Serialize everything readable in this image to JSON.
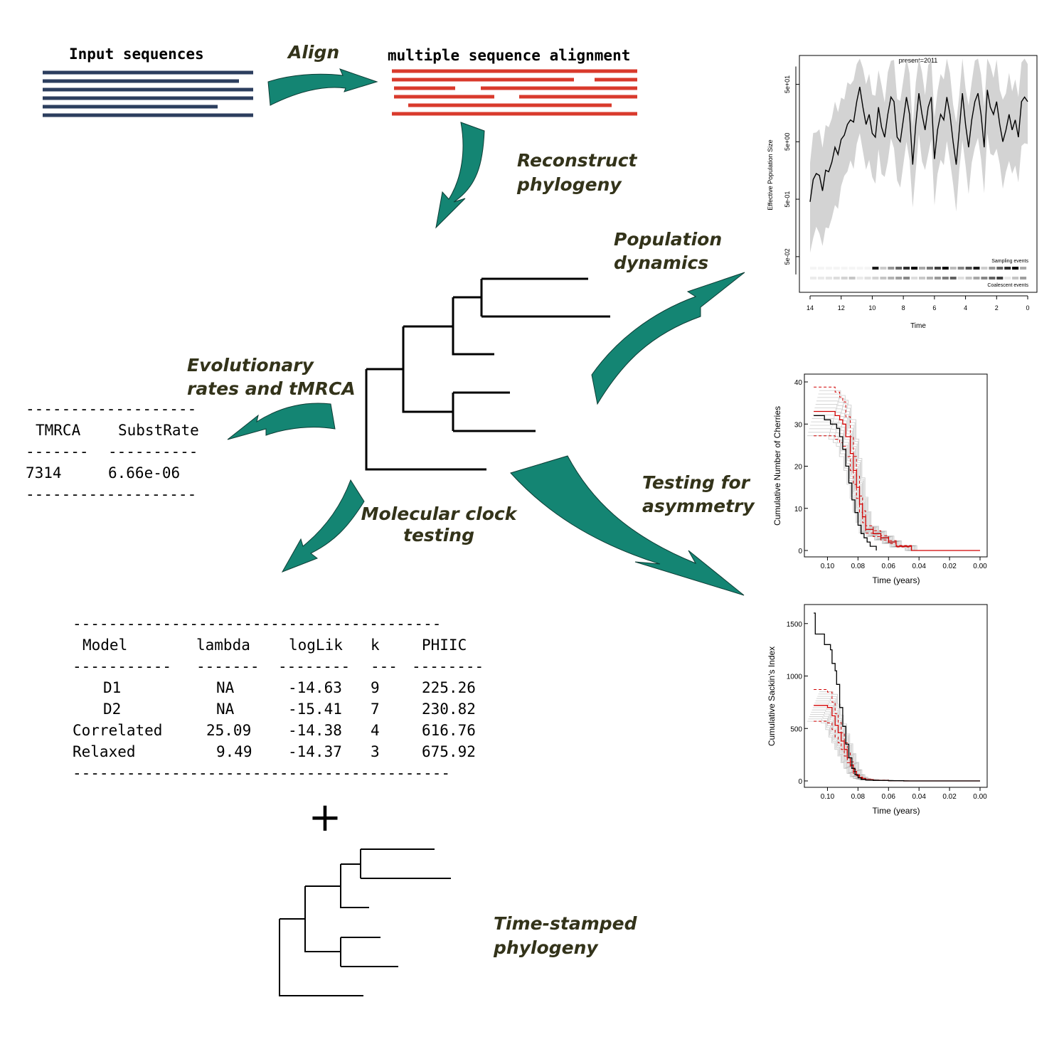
{
  "colors": {
    "arrow": "#148573",
    "input_lines": "#2c3e5e",
    "alignment_lines": "#d93a2c",
    "label_text": "#33331a",
    "ci_band": "#d3d3d3",
    "simulation_red": "#d00000"
  },
  "icons": {
    "arrow": "curved-arrow-icon",
    "plus": "plus-icon"
  },
  "labels": {
    "input_sequences": "Input sequences",
    "align": "Align",
    "msa": "multiple sequence alignment",
    "reconstruct_1": "Reconstruct",
    "reconstruct_2": "phylogeny",
    "popdyn_1": "Population",
    "popdyn_2": "dynamics",
    "evorates_1": "Evolutionary",
    "evorates_2": "rates and tMRCA",
    "clock_1": "Molecular clock",
    "clock_2": "testing",
    "asym_1": "Testing for",
    "asym_2": "asymmetry",
    "timestamped_1": "Time-stamped",
    "timestamped_2": "phylogeny",
    "plus": "+"
  },
  "rates_table": {
    "rule": "-------------------",
    "sep_1": "-------",
    "sep_2": "----------",
    "headers": [
      "TMRCA",
      "SubstRate"
    ],
    "row": [
      "7314",
      "6.66e-06"
    ]
  },
  "clock_table": {
    "rule_top": "-----------------------------------------",
    "rule_bottom": "------------------------------------------",
    "seps": [
      "-----------",
      "-------",
      "--------",
      "---",
      "--------"
    ],
    "headers": [
      "Model",
      "lambda",
      "logLik",
      "k",
      "PHIIC"
    ],
    "rows": [
      [
        "D1",
        "NA",
        "-14.63",
        "9",
        "225.26"
      ],
      [
        "D2",
        "NA",
        "-15.41",
        "7",
        "230.82"
      ],
      [
        "Correlated",
        "25.09",
        "-14.38",
        "4",
        "616.76"
      ],
      [
        "Relaxed",
        "9.49",
        "-14.37",
        "3",
        "675.92"
      ]
    ]
  },
  "chart_data": [
    {
      "type": "line",
      "title": "present=2011",
      "xlabel": "Time",
      "ylabel": "Effective Population Size",
      "x_ticks": [
        "14",
        "12",
        "10",
        "8",
        "6",
        "4",
        "2",
        "0"
      ],
      "y_ticks": [
        "5e-02",
        "5e-01",
        "5e+00",
        "5e+01"
      ],
      "xlim": [
        14,
        0
      ],
      "log_y": true,
      "annotations": [
        "Sampling events",
        "Coalescent events"
      ],
      "series": [
        {
          "x": [
            14.0,
            13.8,
            13.6,
            13.4,
            13.2,
            13.0,
            12.8,
            12.6,
            12.4,
            12.2,
            12.0,
            11.8,
            11.6,
            11.4,
            11.2,
            11.0,
            10.8,
            10.6,
            10.4,
            10.2,
            10.0,
            9.8,
            9.6,
            9.4,
            9.2,
            9.0,
            8.8,
            8.6,
            8.4,
            8.2,
            8.0,
            7.8,
            7.6,
            7.4,
            7.2,
            7.0,
            6.8,
            6.6,
            6.4,
            6.2,
            6.0,
            5.8,
            5.6,
            5.4,
            5.2,
            5.0,
            4.8,
            4.6,
            4.4,
            4.2,
            4.0,
            3.8,
            3.6,
            3.4,
            3.2,
            3.0,
            2.8,
            2.6,
            2.4,
            2.2,
            2.0,
            1.8,
            1.6,
            1.4,
            1.2,
            1.0,
            0.8,
            0.6,
            0.4,
            0.2,
            0.0
          ],
          "y": [
            0.45,
            1.1,
            1.4,
            1.3,
            0.7,
            1.6,
            1.5,
            2.2,
            4.0,
            3.0,
            5.5,
            6.5,
            10.0,
            12.0,
            11.0,
            25.0,
            45.0,
            20.0,
            10.0,
            15.0,
            7.0,
            6.0,
            20.0,
            9.0,
            6.0,
            15.0,
            30.0,
            25.0,
            6.0,
            5.0,
            12.0,
            30.0,
            15.0,
            2.0,
            10.0,
            35.0,
            15.0,
            8.0,
            20.0,
            30.0,
            2.5,
            8.0,
            15.0,
            12.0,
            30.0,
            15.0,
            5.0,
            2.0,
            8.0,
            35.0,
            10.0,
            4.0,
            12.0,
            25.0,
            35.0,
            15.0,
            4.0,
            40.0,
            20.0,
            15.0,
            25.0,
            10.0,
            5.0,
            8.0,
            15.0,
            8.0,
            12.0,
            6.0,
            25.0,
            30.0,
            25.0
          ]
        }
      ]
    },
    {
      "type": "line",
      "xlabel": "Time (years)",
      "ylabel": "Cumulative Number of Cherries",
      "x_ticks": [
        "0.10",
        "0.08",
        "0.06",
        "0.04",
        "0.02",
        "0.00"
      ],
      "y_ticks": [
        "0",
        "10",
        "20",
        "30",
        "40"
      ],
      "xlim": [
        0.11,
        0.0
      ],
      "ylim": [
        0,
        40
      ],
      "series": [
        {
          "x": [
            0.109,
            0.102,
            0.098,
            0.094,
            0.092,
            0.09,
            0.088,
            0.086,
            0.084,
            0.082,
            0.08,
            0.078,
            0.076,
            0.074,
            0.072,
            0.07,
            0.068
          ],
          "y": [
            32,
            31,
            30,
            29,
            27,
            24,
            20,
            16,
            12,
            9,
            6,
            4,
            3,
            2,
            1,
            1,
            0
          ]
        },
        {
          "x": [
            0.109,
            0.1,
            0.095,
            0.092,
            0.09,
            0.088,
            0.085,
            0.083,
            0.081,
            0.079,
            0.077,
            0.075,
            0.07,
            0.065,
            0.06,
            0.055,
            0.05,
            0.045,
            0.04,
            0.02,
            0.0
          ],
          "y": [
            33,
            33,
            32,
            31,
            30,
            27,
            23,
            19,
            15,
            11,
            8,
            5,
            4,
            3,
            2,
            1,
            1,
            0,
            0,
            0,
            0
          ]
        }
      ]
    },
    {
      "type": "line",
      "xlabel": "Time (years)",
      "ylabel": "Cumulative Sackin's Index",
      "x_ticks": [
        "0.10",
        "0.08",
        "0.06",
        "0.04",
        "0.02",
        "0.00"
      ],
      "y_ticks": [
        "0",
        "500",
        "1000",
        "1500"
      ],
      "xlim": [
        0.11,
        0.0
      ],
      "ylim": [
        0,
        1600
      ],
      "series": [
        {
          "x": [
            0.109,
            0.108,
            0.102,
            0.098,
            0.097,
            0.095,
            0.094,
            0.092,
            0.09,
            0.088,
            0.086,
            0.084,
            0.082,
            0.08,
            0.078,
            0.075,
            0.07,
            0.06,
            0.05,
            0.0
          ],
          "y": [
            1600,
            1400,
            1300,
            1250,
            1120,
            1050,
            920,
            700,
            520,
            350,
            220,
            120,
            60,
            30,
            15,
            8,
            5,
            2,
            0,
            0
          ]
        },
        {
          "x": [
            0.109,
            0.1,
            0.097,
            0.095,
            0.093,
            0.091,
            0.089,
            0.087,
            0.085,
            0.083,
            0.081,
            0.079,
            0.077,
            0.075,
            0.07,
            0.06,
            0.05,
            0.0
          ],
          "y": [
            720,
            700,
            620,
            530,
            460,
            380,
            300,
            220,
            150,
            90,
            50,
            30,
            20,
            12,
            6,
            3,
            0,
            0
          ]
        }
      ]
    }
  ]
}
